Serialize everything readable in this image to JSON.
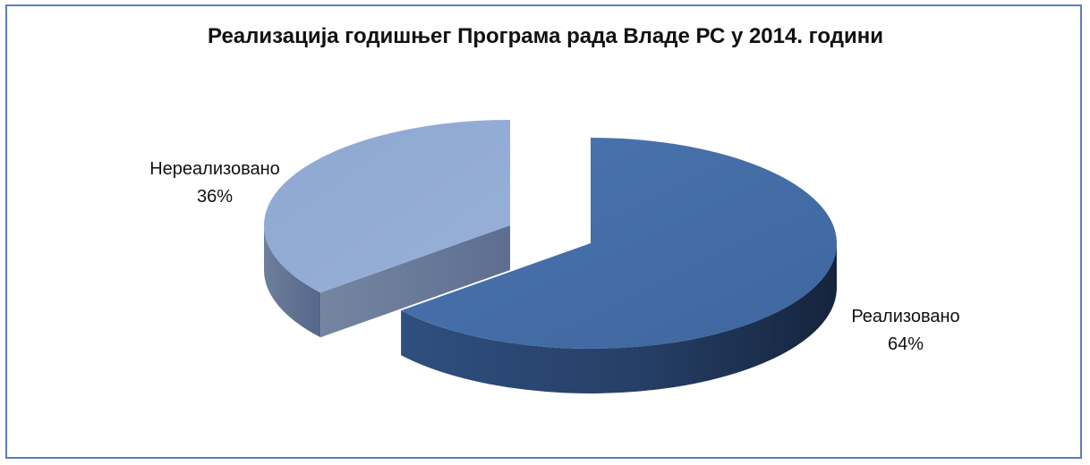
{
  "chart_data": {
    "type": "pie",
    "title": "Реализација годишњег Програма рада Владе РС у 2014. години",
    "slices": [
      {
        "name": "Реализовано",
        "value": 64,
        "label": "64%",
        "color": "#456fa8"
      },
      {
        "name": "Нереализовано",
        "value": 36,
        "label": "36%",
        "color": "#8aa4cf"
      }
    ],
    "legend": "none",
    "style": "3d-exploded"
  }
}
